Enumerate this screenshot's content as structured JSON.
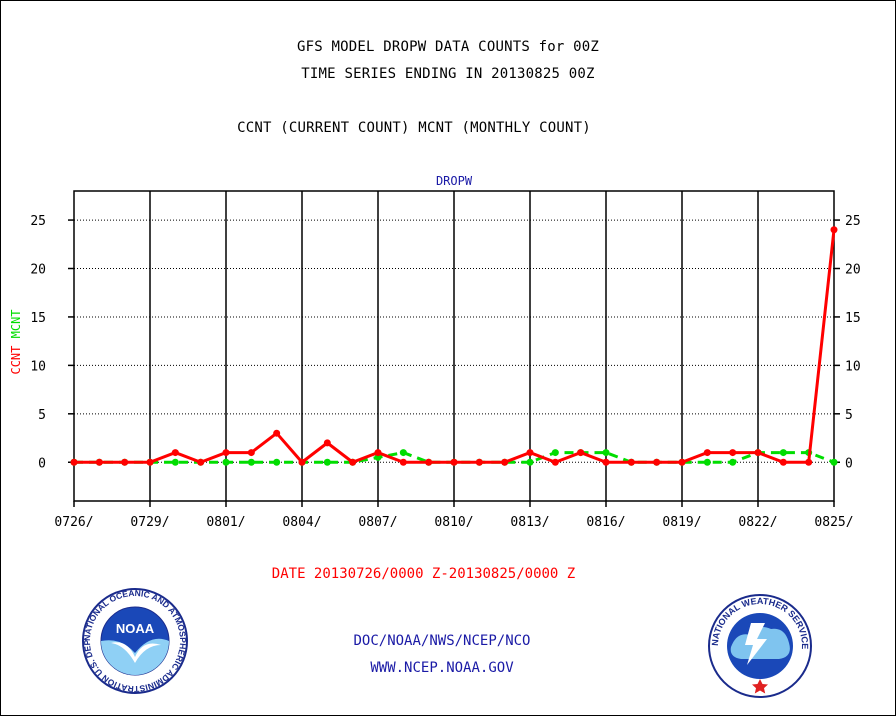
{
  "header": {
    "line1": "GFS MODEL DROPW DATA COUNTS for 00Z",
    "line2": "TIME SERIES ENDING IN 20130825 00Z",
    "line3": "CCNT (CURRENT COUNT) MCNT (MONTHLY COUNT)"
  },
  "chart_data": {
    "type": "line",
    "title": "DROPW",
    "ylabel_parts": [
      "CCNT",
      "MCNT"
    ],
    "ylim": [
      -4,
      28
    ],
    "yticks": [
      0,
      5,
      10,
      15,
      20,
      25
    ],
    "x": [
      "0726",
      "0727",
      "0728",
      "0729",
      "0730",
      "0731",
      "0801",
      "0802",
      "0803",
      "0804",
      "0805",
      "0806",
      "0807",
      "0808",
      "0809",
      "0810",
      "0811",
      "0812",
      "0813",
      "0814",
      "0815",
      "0816",
      "0817",
      "0818",
      "0819",
      "0820",
      "0821",
      "0822",
      "0823",
      "0824",
      "0825"
    ],
    "xtick_labels": [
      "0726/",
      "0729/",
      "0801/",
      "0804/",
      "0807/",
      "0810/",
      "0813/",
      "0816/",
      "0819/",
      "0822/",
      "0825/"
    ],
    "grid": true,
    "series": [
      {
        "name": "CCNT",
        "color": "#ff0000",
        "style": "solid",
        "values": [
          0,
          0,
          0,
          0,
          1,
          0,
          1,
          1,
          3,
          0,
          2,
          0,
          1,
          0,
          0,
          0,
          0,
          0,
          1,
          0,
          1,
          0,
          0,
          0,
          0,
          1,
          1,
          1,
          0,
          0,
          24
        ]
      },
      {
        "name": "MCNT",
        "color": "#00dd00",
        "style": "dashed",
        "values": [
          0,
          0,
          0,
          0,
          0,
          0,
          0,
          0,
          0,
          0,
          0,
          0,
          0.5,
          1,
          0,
          0,
          0,
          0,
          0,
          1,
          1,
          1,
          0,
          0,
          0,
          0,
          0,
          1,
          1,
          1,
          0
        ]
      }
    ]
  },
  "footer": {
    "date_range": "DATE 20130726/0000 Z-20130825/0000 Z",
    "credit_line1": "DOC/NOAA/NWS/NCEP/NCO",
    "credit_line2": "WWW.NCEP.NOAA.GOV"
  },
  "logos": {
    "noaa_text": "NOAA",
    "noaa_ring_text": "NATIONAL OCEANIC AND ATMOSPHERIC ADMINISTRATION U.S. DEPARTMENT OF COMMERCE",
    "nws_ring_text": "NATIONAL WEATHER SERVICE"
  }
}
